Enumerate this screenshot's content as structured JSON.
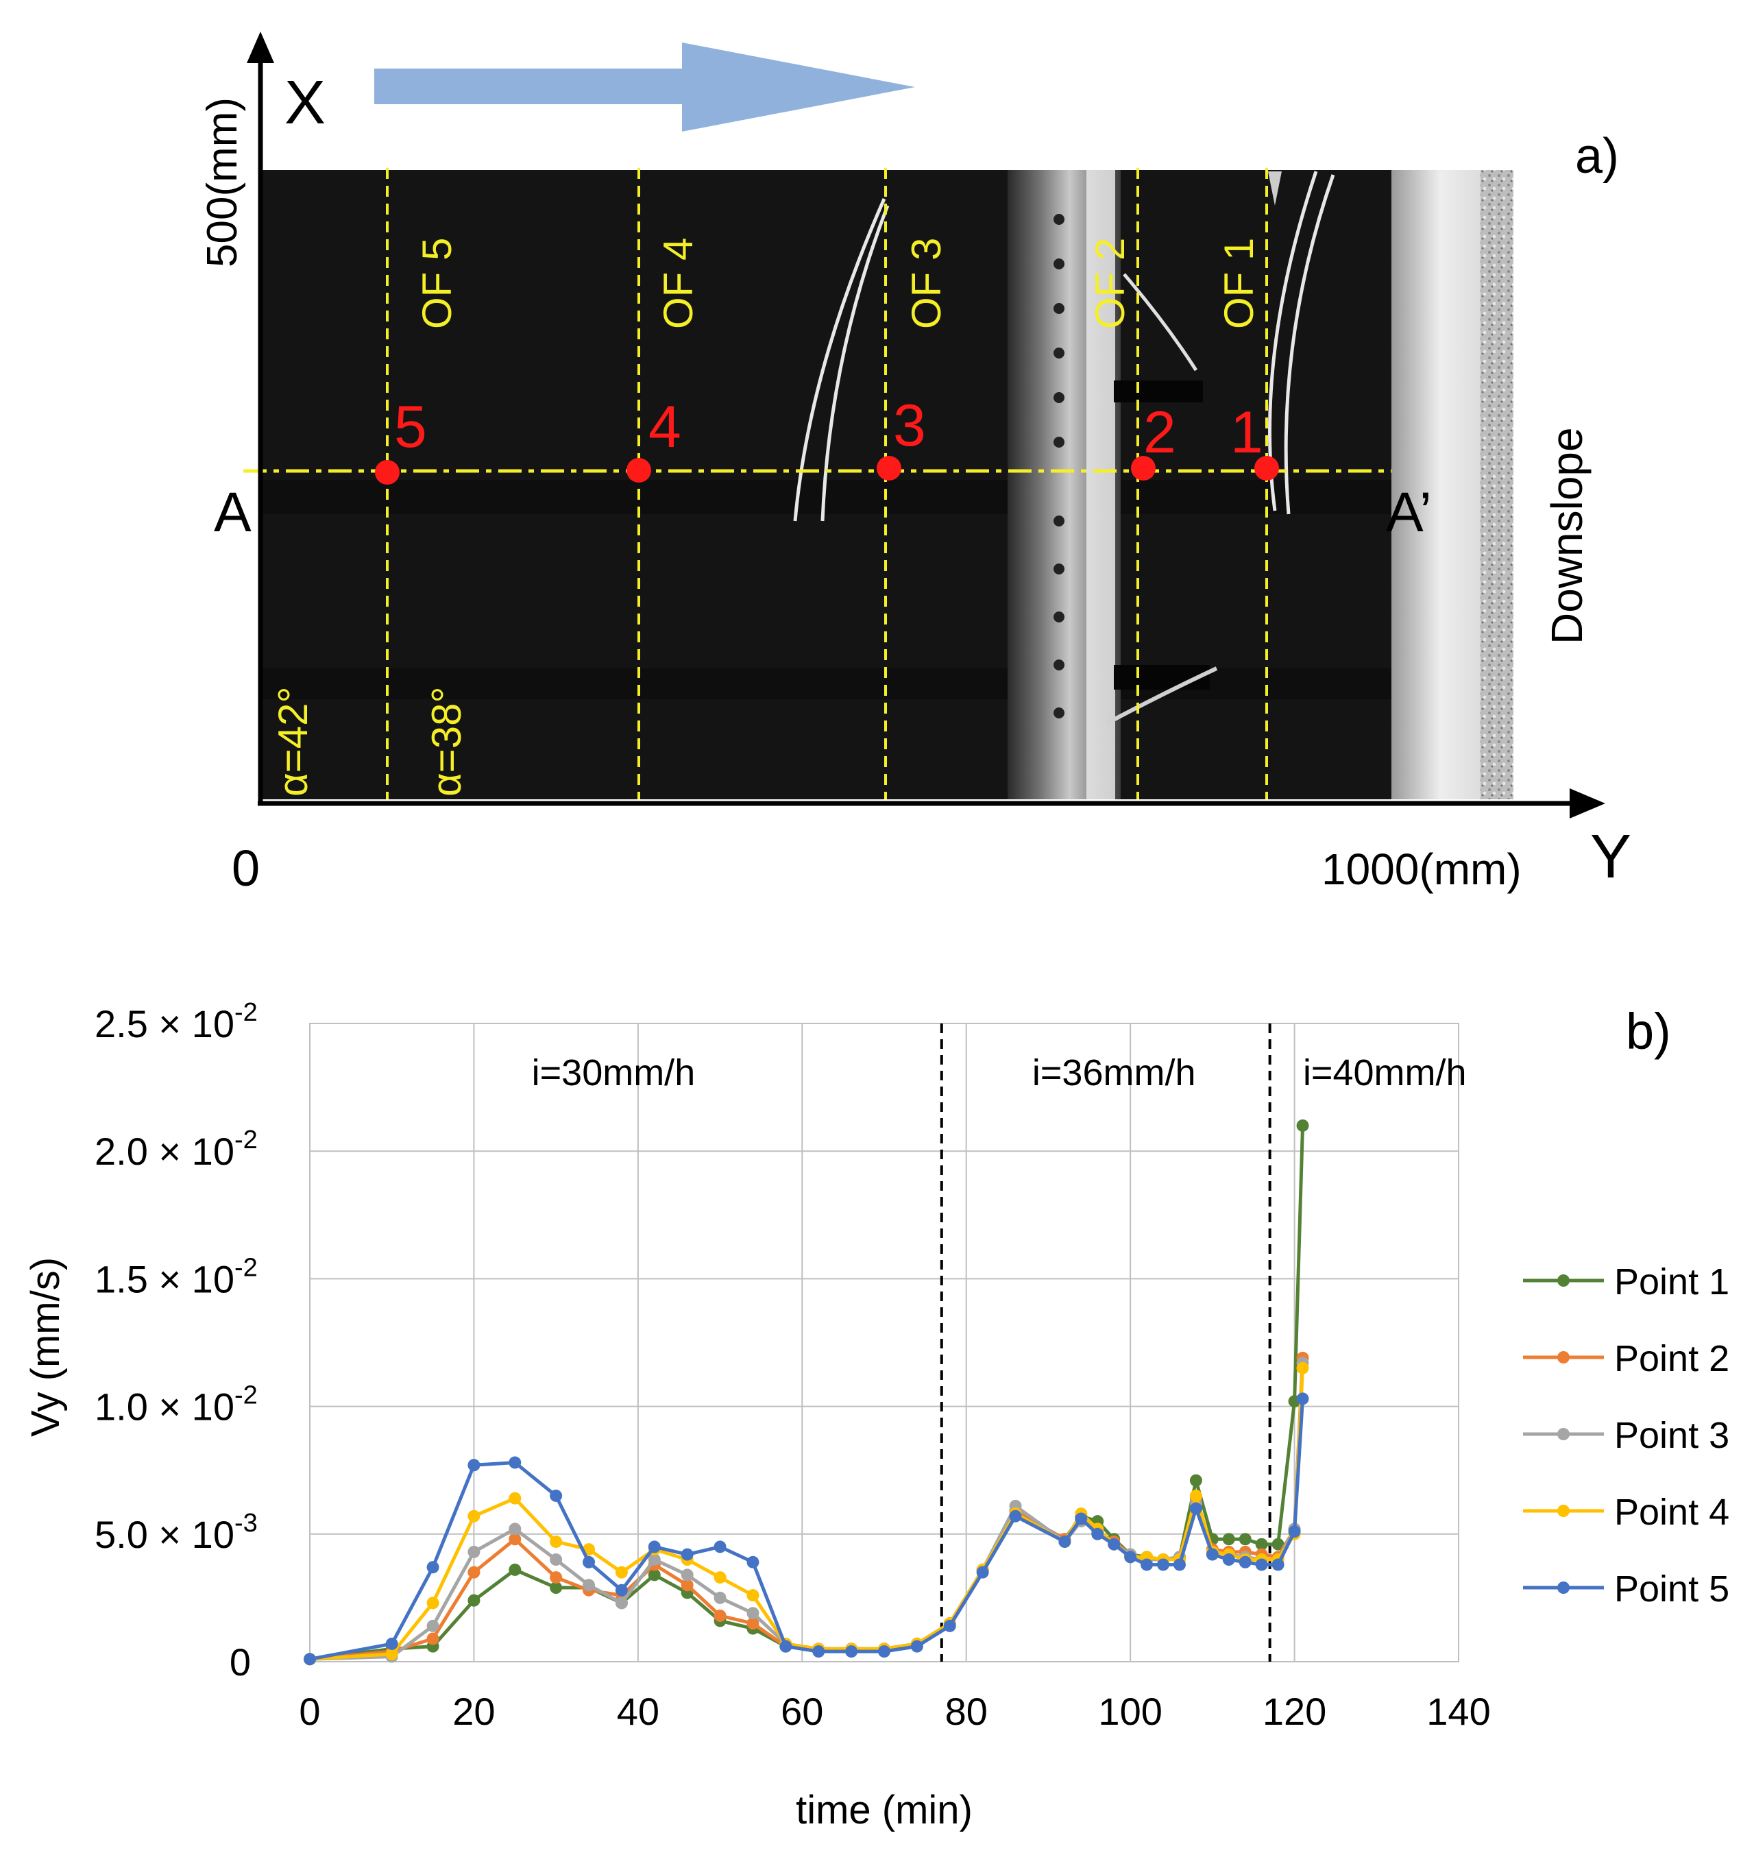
{
  "panel_a": {
    "label": "a)",
    "x_axis_letter": "X",
    "y_axis_letter": "Y",
    "x_max_label": "500(mm)",
    "origin_label": "0",
    "y_max_label": "1000(mm)",
    "section_start": "A",
    "section_end": "A’",
    "downslope_label": "Downslope",
    "angle_left": "α=42°",
    "angle_right": "α=38°",
    "flow_arrow_color": "#8fb1dc",
    "marker_color": "#ff1a1a",
    "guide_color": "#f5ef28",
    "of_lines": [
      "OF 5",
      "OF 4",
      "OF 3",
      "OF 2",
      "OF 1"
    ],
    "points": [
      "5",
      "4",
      "3",
      "2",
      "1"
    ]
  },
  "chart_data": {
    "type": "line",
    "panel_label": "b)",
    "title": "",
    "xlabel": "time (min)",
    "ylabel": "Vy (mm/s)",
    "xlim": [
      0,
      140
    ],
    "ylim": [
      0,
      0.025
    ],
    "x_ticks": [
      0,
      20,
      40,
      60,
      80,
      100,
      120,
      140
    ],
    "x_tick_labels": [
      "0",
      "20",
      "40",
      "60",
      "80",
      "100",
      "120",
      "140"
    ],
    "y_ticks": [
      {
        "value": 0,
        "label": "0",
        "mantissa": "",
        "exponent": ""
      },
      {
        "value": 0.005,
        "label": "5.0 × 10-3",
        "mantissa": "5.0 ×",
        "exponent": "-3"
      },
      {
        "value": 0.01,
        "label": "1.0 × 10-2",
        "mantissa": "1.0 ×",
        "exponent": "-2"
      },
      {
        "value": 0.015,
        "label": "1.5 × 10-2",
        "mantissa": "1.5 ×",
        "exponent": "-2"
      },
      {
        "value": 0.02,
        "label": "2.0 × 10-2",
        "mantissa": "2.0 ×",
        "exponent": "-2"
      },
      {
        "value": 0.025,
        "label": "2.5 × 10-2",
        "mantissa": "2.5 ×",
        "exponent": "-2"
      }
    ],
    "grid": true,
    "legend_position": "right",
    "annotations": [
      {
        "text": "i=30mm/h",
        "x": 37
      },
      {
        "text": "i=36mm/h",
        "x": 98
      },
      {
        "text": "i=40mm/h",
        "x": 131
      }
    ],
    "phase_boundaries": [
      77,
      117
    ],
    "x": [
      0,
      10,
      15,
      20,
      25,
      30,
      34,
      38,
      42,
      46,
      50,
      54,
      58,
      62,
      66,
      70,
      74,
      78,
      82,
      86,
      92,
      94,
      96,
      98,
      100,
      102,
      104,
      106,
      108,
      110,
      112,
      114,
      116,
      118,
      120,
      121
    ],
    "series": [
      {
        "name": "Point 1",
        "color": "#548235",
        "values": [
          0.0001,
          0.0005,
          0.0006,
          0.0024,
          0.0036,
          0.0029,
          0.0029,
          0.0023,
          0.0034,
          0.0027,
          0.0016,
          0.0013,
          0.0006,
          0.0005,
          0.0005,
          0.0005,
          0.0007,
          0.0015,
          0.0036,
          0.0059,
          0.0048,
          0.0057,
          0.0055,
          0.0048,
          0.0042,
          0.0041,
          0.004,
          0.0041,
          0.0071,
          0.0048,
          0.0048,
          0.0048,
          0.0046,
          0.0046,
          0.0102,
          0.021
        ]
      },
      {
        "name": "Point 2",
        "color": "#ed7d31",
        "values": [
          0.0001,
          0.0004,
          0.0009,
          0.0035,
          0.0048,
          0.0033,
          0.0028,
          0.0026,
          0.0038,
          0.003,
          0.0018,
          0.0015,
          0.0006,
          0.0005,
          0.0005,
          0.0005,
          0.0007,
          0.0015,
          0.0036,
          0.0059,
          0.0048,
          0.0056,
          0.0051,
          0.0047,
          0.0042,
          0.004,
          0.004,
          0.0041,
          0.0064,
          0.0044,
          0.0043,
          0.0043,
          0.0042,
          0.0041,
          0.0052,
          0.0119
        ]
      },
      {
        "name": "Point 3",
        "color": "#a5a5a5",
        "values": [
          0.0001,
          0.0002,
          0.0014,
          0.0043,
          0.0052,
          0.004,
          0.003,
          0.0023,
          0.004,
          0.0034,
          0.0025,
          0.0019,
          0.0007,
          0.0005,
          0.0005,
          0.0005,
          0.0007,
          0.0015,
          0.0036,
          0.0061,
          0.0047,
          0.0055,
          0.0052,
          0.0046,
          0.0042,
          0.004,
          0.004,
          0.0041,
          0.0062,
          0.0043,
          0.0042,
          0.0041,
          0.004,
          0.004,
          0.0052,
          0.0117
        ]
      },
      {
        "name": "Point 4",
        "color": "#ffc000",
        "values": [
          0.0001,
          0.0003,
          0.0023,
          0.0057,
          0.0064,
          0.0047,
          0.0044,
          0.0035,
          0.0044,
          0.004,
          0.0033,
          0.0026,
          0.0007,
          0.0005,
          0.0005,
          0.0005,
          0.0007,
          0.0015,
          0.0036,
          0.0058,
          0.0047,
          0.0058,
          0.0052,
          0.0046,
          0.0041,
          0.0041,
          0.004,
          0.004,
          0.0065,
          0.0043,
          0.0042,
          0.004,
          0.004,
          0.004,
          0.005,
          0.0115
        ]
      },
      {
        "name": "Point 5",
        "color": "#4472c4",
        "values": [
          0.0001,
          0.0007,
          0.0037,
          0.0077,
          0.0078,
          0.0065,
          0.0039,
          0.0028,
          0.0045,
          0.0042,
          0.0045,
          0.0039,
          0.0006,
          0.0004,
          0.0004,
          0.0004,
          0.0006,
          0.0014,
          0.0035,
          0.0057,
          0.0047,
          0.0056,
          0.005,
          0.0046,
          0.0041,
          0.0038,
          0.0038,
          0.0038,
          0.006,
          0.0042,
          0.004,
          0.0039,
          0.0038,
          0.0038,
          0.0051,
          0.0103
        ]
      }
    ]
  }
}
